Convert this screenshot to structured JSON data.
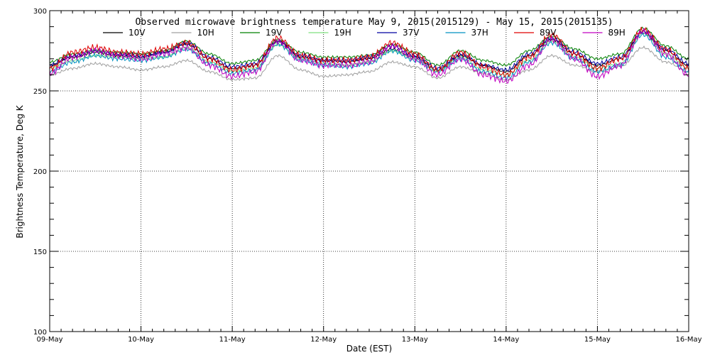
{
  "chart_data": {
    "type": "line",
    "title": "Observed microwave brightness temperature May  9, 2015(2015129) - May 15, 2015(2015135)",
    "xlabel": "Date (EST)",
    "ylabel": "Brightness Temperature, Deg K",
    "xlim": [
      0,
      7
    ],
    "ylim": [
      100,
      300
    ],
    "x_ticks": [
      "09-May",
      "10-May",
      "11-May",
      "12-May",
      "13-May",
      "14-May",
      "15-May",
      "16-May"
    ],
    "y_ticks": [
      "100",
      "150",
      "200",
      "250",
      "300"
    ],
    "grid": true,
    "legend_position": "top",
    "x_sample_days": [
      0,
      0.25,
      0.5,
      0.75,
      1,
      1.25,
      1.5,
      1.75,
      2,
      2.25,
      2.5,
      2.75,
      3,
      3.25,
      3.5,
      3.75,
      4,
      4.25,
      4.5,
      4.75,
      5,
      5.25,
      5.5,
      5.75,
      6,
      6.25,
      6.5,
      6.75,
      7
    ],
    "series": [
      {
        "name": "10V",
        "color": "#000000",
        "values": [
          266,
          271,
          274,
          272,
          271,
          274,
          279,
          270,
          264,
          266,
          281,
          271,
          269,
          268,
          270,
          276,
          271,
          263,
          272,
          266,
          262,
          272,
          282,
          273,
          266,
          270,
          286,
          275,
          266
        ]
      },
      {
        "name": "10H",
        "color": "#a0a0a0",
        "values": [
          260,
          264,
          267,
          265,
          263,
          265,
          269,
          262,
          257,
          258,
          272,
          263,
          259,
          260,
          262,
          268,
          265,
          258,
          265,
          261,
          257,
          263,
          272,
          266,
          262,
          265,
          277,
          268,
          262
        ]
      },
      {
        "name": "19V",
        "color": "#008000",
        "values": [
          268,
          273,
          275,
          274,
          273,
          275,
          281,
          273,
          267,
          269,
          282,
          274,
          271,
          271,
          272,
          279,
          274,
          266,
          275,
          269,
          266,
          275,
          284,
          276,
          270,
          273,
          289,
          278,
          270
        ]
      },
      {
        "name": "19H",
        "color": "#7fe07f",
        "values": [
          264,
          269,
          272,
          271,
          270,
          271,
          277,
          268,
          262,
          264,
          279,
          270,
          267,
          266,
          268,
          275,
          270,
          262,
          271,
          263,
          260,
          269,
          281,
          271,
          264,
          267,
          286,
          273,
          264
        ]
      },
      {
        "name": "37V",
        "color": "#0000a0",
        "values": [
          266,
          272,
          275,
          273,
          272,
          274,
          280,
          271,
          265,
          267,
          281,
          272,
          269,
          269,
          271,
          278,
          272,
          264,
          273,
          266,
          263,
          273,
          283,
          274,
          267,
          271,
          287,
          276,
          267
        ]
      },
      {
        "name": "37H",
        "color": "#0090c0",
        "values": [
          262,
          268,
          272,
          270,
          269,
          271,
          276,
          267,
          261,
          263,
          279,
          269,
          266,
          265,
          267,
          275,
          269,
          262,
          270,
          262,
          258,
          268,
          280,
          270,
          262,
          266,
          285,
          271,
          262
        ]
      },
      {
        "name": "89V",
        "color": "#e00000",
        "values": [
          264,
          274,
          277,
          274,
          273,
          276,
          280,
          270,
          263,
          266,
          283,
          272,
          269,
          269,
          271,
          280,
          273,
          263,
          274,
          265,
          260,
          271,
          285,
          273,
          264,
          270,
          288,
          276,
          264
        ]
      },
      {
        "name": "89H",
        "color": "#c000c0",
        "values": [
          261,
          271,
          275,
          272,
          270,
          273,
          277,
          266,
          259,
          262,
          281,
          269,
          266,
          266,
          268,
          278,
          270,
          260,
          270,
          260,
          256,
          266,
          282,
          270,
          259,
          266,
          287,
          273,
          260
        ]
      }
    ]
  }
}
